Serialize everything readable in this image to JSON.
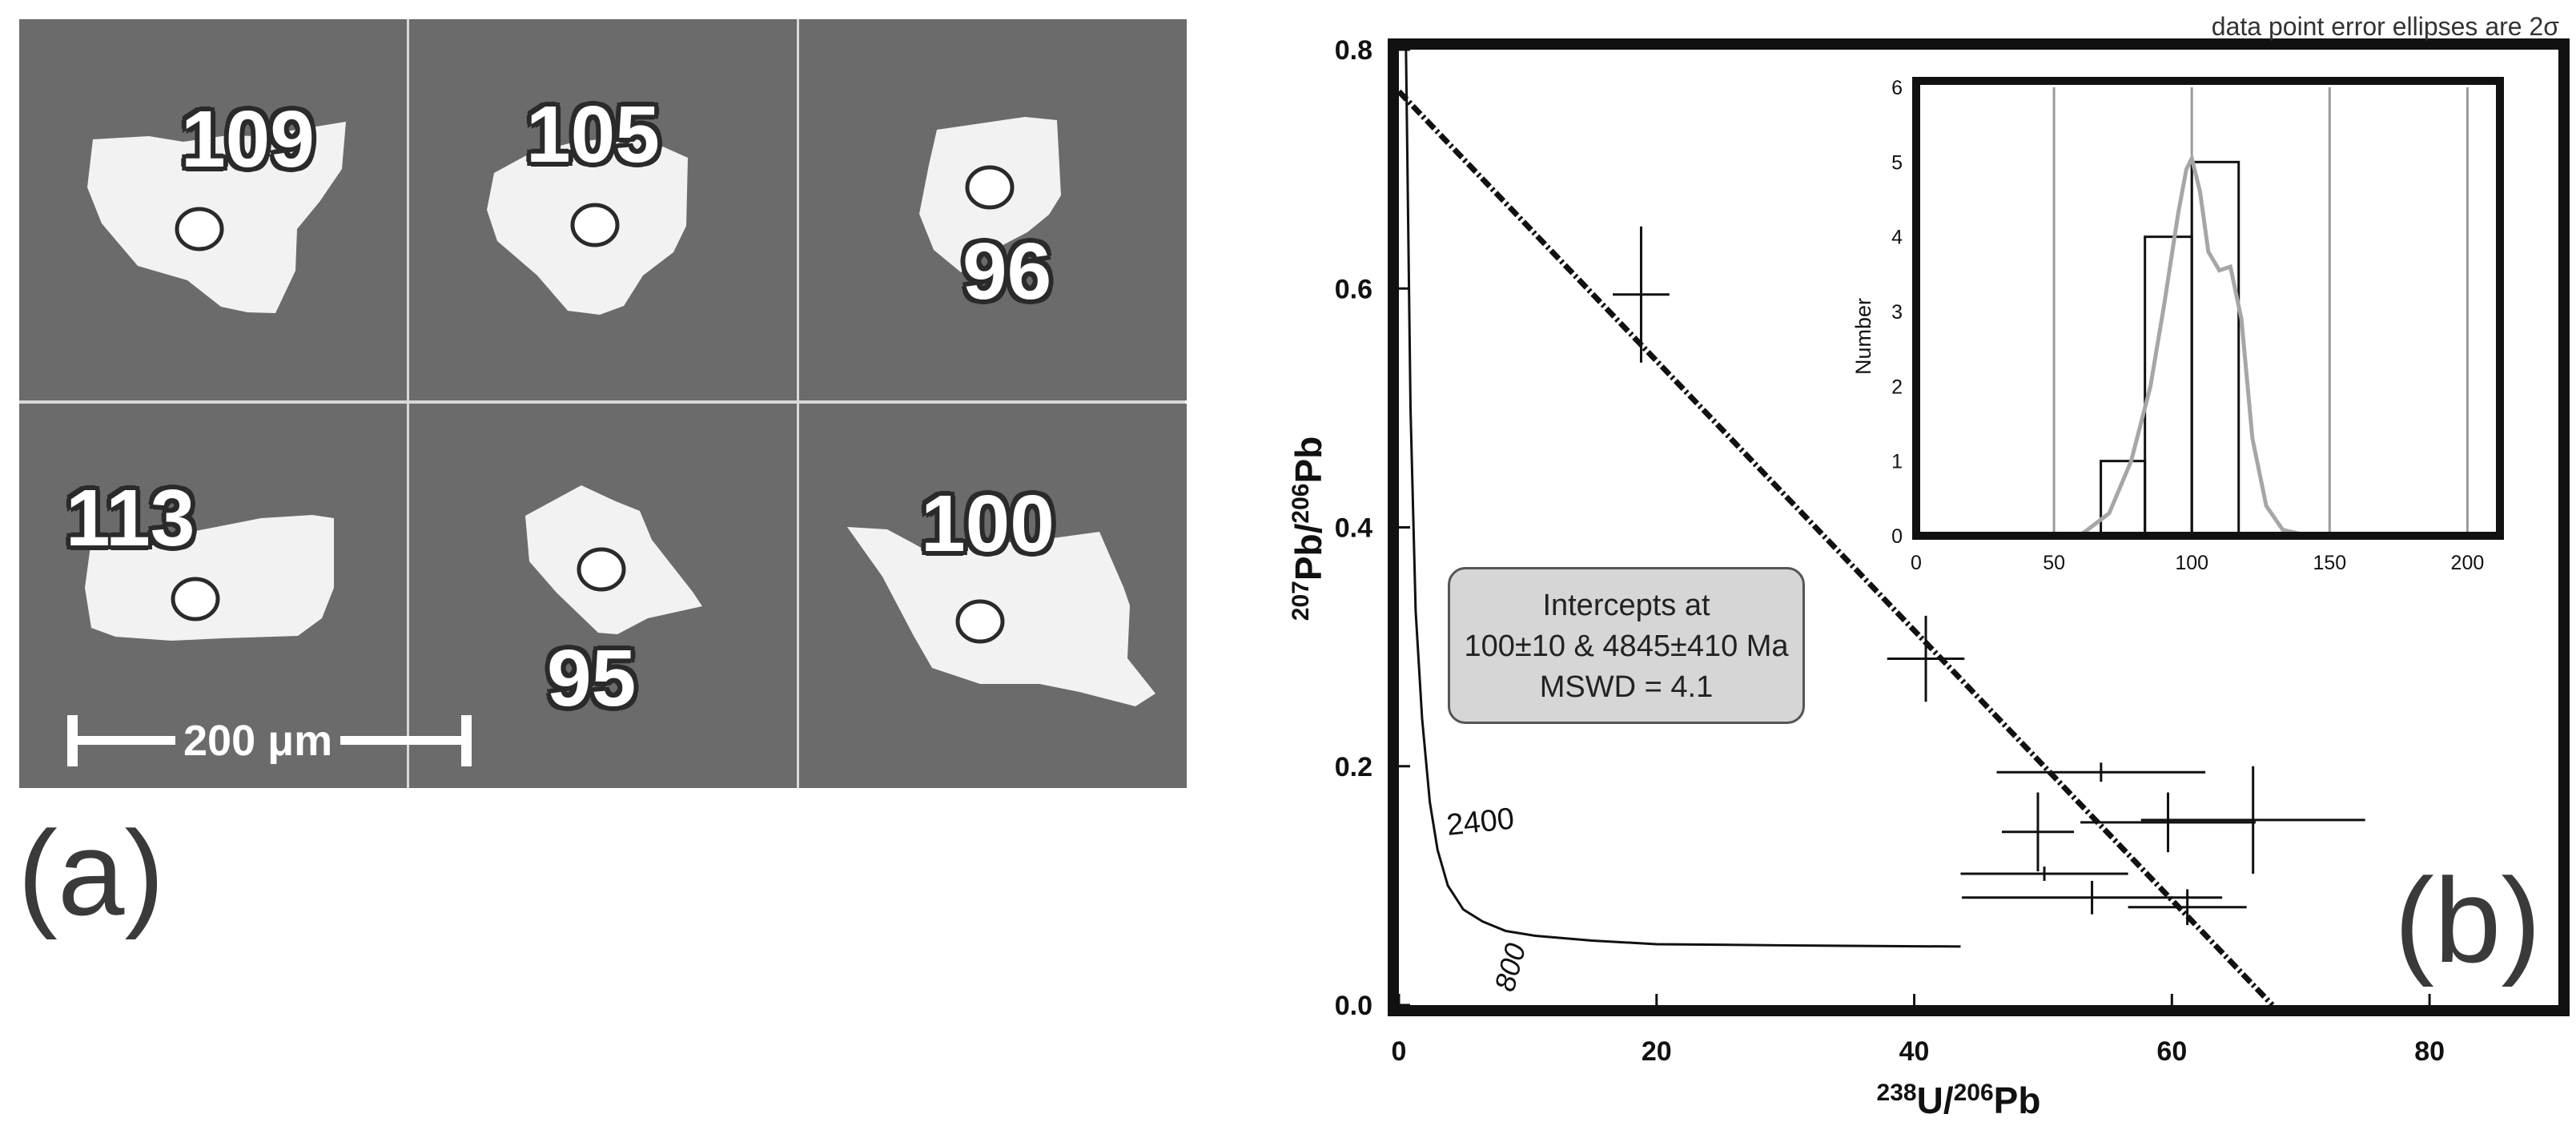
{
  "panel_a": {
    "label": "(a)",
    "grains": [
      {
        "age": "109"
      },
      {
        "age": "105"
      },
      {
        "age": "96"
      },
      {
        "age": "113"
      },
      {
        "age": "95"
      },
      {
        "age": "100"
      }
    ],
    "scale_bar": "200 μm"
  },
  "panel_b": {
    "label": "(b)",
    "note": "data point error ellipses are 2σ",
    "intercepts": [
      "Intercepts at",
      "100±10 & 4845±410 Ma",
      "MSWD = 4.1"
    ],
    "concordia_labels": [
      "2400",
      "800"
    ]
  },
  "colors": {
    "sem_background": "#6b6b6b",
    "grain": "#f2f2f2",
    "ink": "#111111",
    "density_curve": "#a6a6a6",
    "box_fill": "#d6d6d6"
  },
  "chart_data": [
    {
      "type": "scatter",
      "title": "",
      "xlabel_parts": [
        {
          "sup": "238"
        },
        {
          "text": "U/"
        },
        {
          "sup": "206"
        },
        {
          "text": "Pb"
        }
      ],
      "ylabel_parts": [
        {
          "sup": "207"
        },
        {
          "text": "Pb/"
        },
        {
          "sup": "206"
        },
        {
          "text": "Pb"
        }
      ],
      "xlim": [
        0,
        90
      ],
      "ylim": [
        0,
        0.8
      ],
      "xticks": [
        0,
        20,
        40,
        60,
        80
      ],
      "xtick_labels": [
        "0",
        "20",
        "40",
        "60",
        "80"
      ],
      "yticks": [
        0,
        0.2,
        0.4,
        0.6,
        0.8
      ],
      "ytick_labels": [
        "0.0",
        "0.2",
        "0.4",
        "0.6",
        "0.8"
      ],
      "points": [
        {
          "x": 18.8,
          "y": 0.595,
          "x_err": 2.2,
          "y_err": 0.057
        },
        {
          "x": 40.9,
          "y": 0.29,
          "x_err": 3.0,
          "y_err": 0.036
        },
        {
          "x": 49.6,
          "y": 0.145,
          "x_err": 2.8,
          "y_err": 0.033
        },
        {
          "x": 54.5,
          "y": 0.195,
          "x_err": 8.1,
          "y_err": 0.008
        },
        {
          "x": 50.1,
          "y": 0.11,
          "x_err": 6.5,
          "y_err": 0.006
        },
        {
          "x": 59.7,
          "y": 0.153,
          "x_err": 6.8,
          "y_err": 0.025
        },
        {
          "x": 66.3,
          "y": 0.155,
          "x_err": 8.7,
          "y_err": 0.045
        },
        {
          "x": 53.8,
          "y": 0.09,
          "x_err": 10.1,
          "y_err": 0.014
        },
        {
          "x": 61.2,
          "y": 0.082,
          "x_err": 4.6,
          "y_err": 0.015
        }
      ],
      "regression_line": {
        "x": [
          0,
          67.8
        ],
        "y": [
          0.765,
          0
        ]
      },
      "concordia": {
        "x": [
          0.55,
          0.9,
          1.3,
          1.8,
          2.4,
          3.0,
          3.8,
          5.0,
          6.5,
          8.3,
          10.6,
          15.0,
          20.0,
          30.0,
          43.6
        ],
        "y": [
          0.8,
          0.5,
          0.33,
          0.24,
          0.17,
          0.13,
          0.1,
          0.08,
          0.07,
          0.062,
          0.058,
          0.054,
          0.051,
          0.05,
          0.049
        ]
      }
    },
    {
      "type": "bar",
      "title": "",
      "xlabel": "",
      "ylabel": "Number",
      "xlim": [
        0,
        233
      ],
      "ylim": [
        0,
        6
      ],
      "xticks": [
        0,
        50,
        100,
        150,
        200
      ],
      "yticks": [
        0,
        1,
        2,
        3,
        4,
        5,
        6
      ],
      "bins": [
        {
          "x0": 67,
          "x1": 83,
          "count": 1
        },
        {
          "x0": 83,
          "x1": 100,
          "count": 4
        },
        {
          "x0": 100,
          "x1": 117,
          "count": 5
        }
      ],
      "density_curve": {
        "x": [
          0,
          50,
          60,
          70,
          78,
          85,
          90,
          95,
          98,
          100,
          103,
          106,
          110,
          114,
          118,
          122,
          127,
          133,
          140,
          150,
          168
        ],
        "y": [
          0,
          0,
          0.02,
          0.3,
          1.0,
          2.0,
          3.1,
          4.3,
          4.9,
          5.05,
          4.6,
          3.8,
          3.55,
          3.6,
          2.9,
          1.3,
          0.4,
          0.08,
          0.02,
          0,
          0
        ]
      },
      "vertical_lines": [
        50,
        100,
        150,
        200
      ]
    }
  ]
}
